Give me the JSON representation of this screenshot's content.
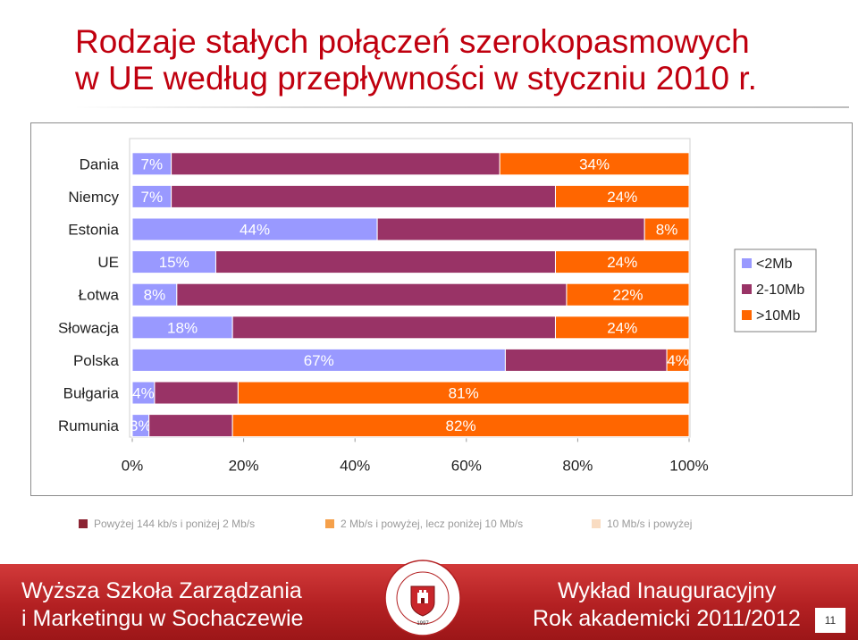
{
  "title": {
    "line1": "Rodzaje stałych połączeń szerokopasmowych",
    "line2": "w UE według przepływności w styczniu 2010 r."
  },
  "chart_data": {
    "type": "bar",
    "orientation": "horizontal",
    "stacked": true,
    "categories": [
      "Dania",
      "Niemcy",
      "Estonia",
      "UE",
      "Łotwa",
      "Słowacja",
      "Polska",
      "Bułgaria",
      "Rumunia"
    ],
    "series": [
      {
        "name": "<2Mb",
        "color": "#9999ff",
        "values": [
          7,
          7,
          44,
          15,
          8,
          18,
          67,
          4,
          3
        ],
        "labels": [
          "7%",
          "7%",
          "44%",
          "15%",
          "8%",
          "18%",
          "67%",
          "4%",
          "3%"
        ]
      },
      {
        "name": "2-10Mb",
        "color": "#993366",
        "values": [
          59,
          69,
          48,
          61,
          70,
          58,
          29,
          15,
          15
        ],
        "labels": [
          "",
          "",
          "",
          "",
          "",
          "",
          "",
          "",
          ""
        ]
      },
      {
        "name": ">10Mb",
        "color": "#ff6600",
        "values": [
          34,
          24,
          8,
          24,
          22,
          24,
          4,
          81,
          82
        ],
        "labels": [
          "34%",
          "24%",
          "8%",
          "24%",
          "22%",
          "24%",
          "4%",
          "81%",
          "82%"
        ]
      }
    ],
    "xticks": [
      "0%",
      "20%",
      "40%",
      "60%",
      "80%",
      "100%"
    ],
    "xlim": [
      0,
      100
    ],
    "legend_position": "right",
    "grid": false
  },
  "notes": [
    {
      "color": "#8c2433",
      "text": "Powyżej 144 kb/s i poniżej 2 Mb/s"
    },
    {
      "color": "#f5a04a",
      "text": "2 Mb/s i powyżej, lecz poniżej 10 Mb/s"
    },
    {
      "color": "#f9dcc2",
      "text": "10 Mb/s i powyżej"
    }
  ],
  "footer": {
    "school_line1": "Wyższa Szkoła Zarządzania",
    "school_line2": "i Marketingu w Sochaczewie",
    "lecture_line1": "Wykład Inauguracyjny",
    "lecture_line2": "Rok akademicki 2011/2012",
    "page_number": "11",
    "seal_text": "Wyższa Szkoła Zarządzania i Marketingu w Sochaczewie",
    "seal_year": "1997"
  }
}
